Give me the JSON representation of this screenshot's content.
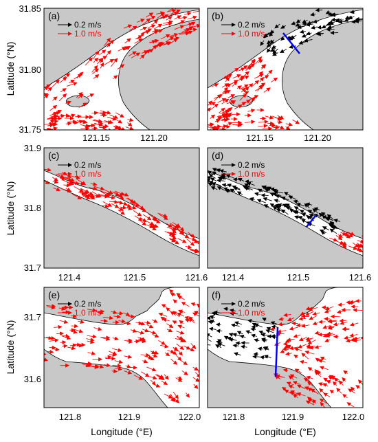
{
  "figure": {
    "y_label": "Latitude (°N)",
    "x_label": "Longitude (°E)",
    "land_color": "#c8c8c8",
    "water_color": "#ffffff",
    "black_arrow_color": "#000000",
    "red_arrow_color": "#ff0000",
    "section_line_color": "#0000ff",
    "panels": [
      {
        "id": "a",
        "label": "(a)",
        "legend": [
          "0.2 m/s",
          "1.0 m/s"
        ],
        "yticks": [
          "31.85",
          "31.80",
          "31.75"
        ],
        "xticks": [
          "121.15",
          "121.20"
        ]
      },
      {
        "id": "b",
        "label": "(b)",
        "legend": [
          "0.2 m/s",
          "1.0 m/s"
        ],
        "yticks": [],
        "xticks": [
          "121.15",
          "121.20"
        ]
      },
      {
        "id": "c",
        "label": "(c)",
        "legend": [
          "0.2 m/s",
          "1.0 m/s"
        ],
        "yticks": [
          "31.9",
          "31.8",
          "31.7"
        ],
        "xticks": [
          "121.4",
          "121.5",
          "121.6"
        ]
      },
      {
        "id": "d",
        "label": "(d)",
        "legend": [
          "0.2 m/s",
          "1.0 m/s"
        ],
        "yticks": [],
        "xticks": [
          "121.4",
          "121.5",
          "121.6"
        ]
      },
      {
        "id": "e",
        "label": "(e)",
        "legend": [
          "0.2 m/s",
          "1.0 m/s"
        ],
        "yticks": [
          "31.7",
          "31.6"
        ],
        "xticks": [
          "121.8",
          "121.9",
          "122.0"
        ]
      },
      {
        "id": "f",
        "label": "(f)",
        "legend": [
          "0.2 m/s",
          "1.0 m/s"
        ],
        "yticks": [],
        "xticks": [
          "121.8",
          "121.9",
          "122.0"
        ]
      }
    ]
  }
}
